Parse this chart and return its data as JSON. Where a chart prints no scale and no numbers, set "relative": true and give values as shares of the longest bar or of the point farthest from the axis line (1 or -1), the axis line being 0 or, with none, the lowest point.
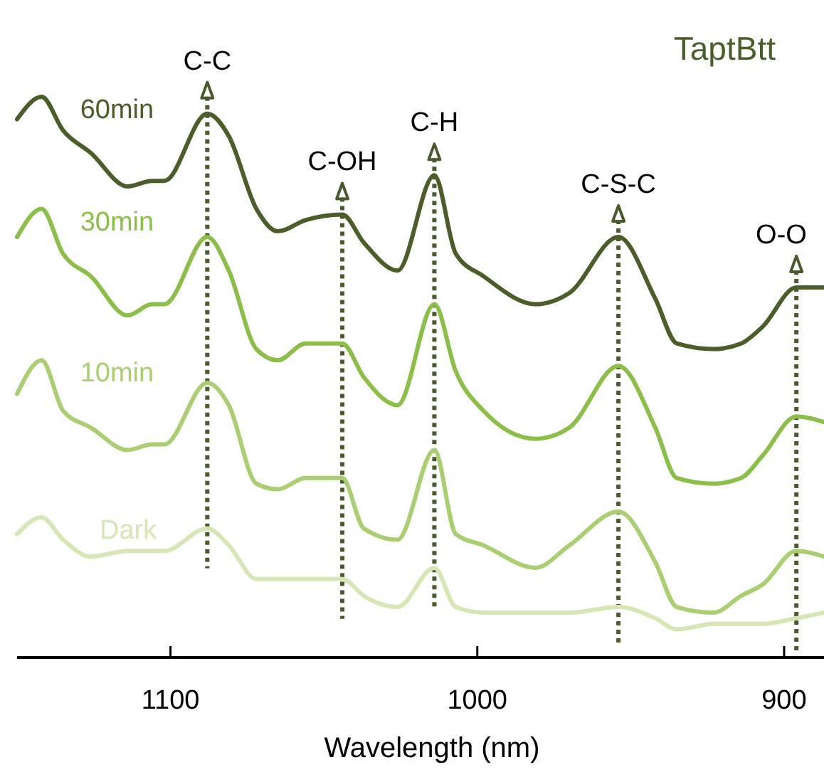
{
  "chart_data": {
    "type": "line",
    "title": "TaptBtt",
    "xlabel": "Wavelength (nm)",
    "relative": true,
    "x": [
      1150,
      1142,
      1135,
      1126,
      1114,
      1106,
      1102,
      1088,
      1081,
      1072,
      1065,
      1056,
      1044,
      1037,
      1026,
      1014,
      1007,
      998,
      981,
      970,
      954,
      942,
      935,
      923,
      914,
      907,
      896,
      887
    ],
    "xlim": [
      1150,
      887
    ],
    "xticks": [
      1100,
      1000,
      900
    ],
    "series": [
      {
        "name": "60min",
        "color": "#4b5e2a",
        "values": [
          0.96,
          1,
          0.94,
          0.9,
          0.84,
          0.85,
          0.85,
          0.97,
          0.93,
          0.8,
          0.76,
          0.78,
          0.79,
          0.74,
          0.69,
          0.86,
          0.72,
          0.68,
          0.63,
          0.65,
          0.75,
          0.64,
          0.56,
          0.55,
          0.56,
          0.59,
          0.66,
          0.66
        ]
      },
      {
        "name": "30min",
        "color": "#8cbf4a",
        "values": [
          0.75,
          0.8,
          0.72,
          0.68,
          0.61,
          0.63,
          0.63,
          0.75,
          0.69,
          0.55,
          0.53,
          0.56,
          0.56,
          0.5,
          0.45,
          0.63,
          0.51,
          0.44,
          0.39,
          0.41,
          0.52,
          0.41,
          0.32,
          0.31,
          0.32,
          0.36,
          0.43,
          0.42
        ]
      },
      {
        "name": "10min",
        "color": "#a9cf72",
        "values": [
          0.47,
          0.53,
          0.44,
          0.41,
          0.37,
          0.38,
          0.38,
          0.49,
          0.45,
          0.31,
          0.3,
          0.32,
          0.32,
          0.23,
          0.21,
          0.37,
          0.22,
          0.2,
          0.16,
          0.2,
          0.26,
          0.17,
          0.09,
          0.08,
          0.11,
          0.13,
          0.19,
          0.18
        ]
      },
      {
        "name": "Dark",
        "color": "#d6e6b4",
        "values": [
          0.22,
          0.25,
          0.21,
          0.18,
          0.19,
          0.19,
          0.19,
          0.23,
          0.2,
          0.14,
          0.14,
          0.14,
          0.14,
          0.11,
          0.09,
          0.16,
          0.09,
          0.08,
          0.08,
          0.08,
          0.09,
          0.07,
          0.05,
          0.06,
          0.06,
          0.06,
          0.07,
          0.08
        ]
      }
    ],
    "ref_lines": [
      {
        "axis": "x",
        "value": 1088,
        "label": "C-C",
        "color": "#4b5a2e",
        "line_style": "dotted"
      },
      {
        "axis": "x",
        "value": 1044,
        "label": "C-OH",
        "color": "#4b5a2e",
        "line_style": "dotted"
      },
      {
        "axis": "x",
        "value": 1014,
        "label": "C-H",
        "color": "#4b5a2e",
        "line_style": "dotted"
      },
      {
        "axis": "x",
        "value": 954,
        "label": "C-S-C",
        "color": "#4b5a2e",
        "line_style": "dotted"
      },
      {
        "axis": "x",
        "value": 896,
        "label": "O-O",
        "color": "#4b5a2e",
        "line_style": "dotted"
      }
    ],
    "marker": "none",
    "line_style": "solid"
  }
}
